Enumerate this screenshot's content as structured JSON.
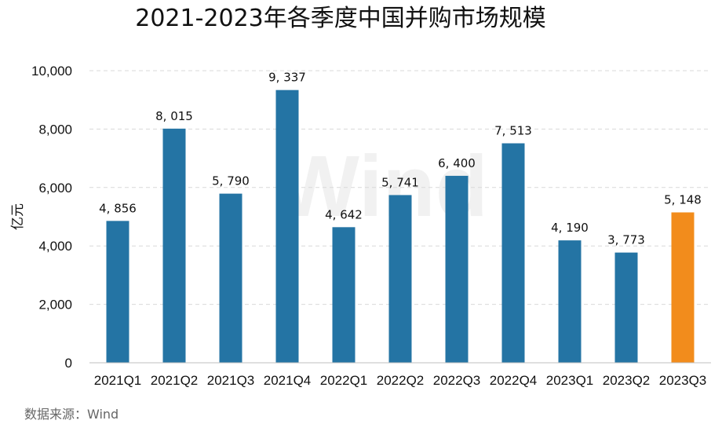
{
  "chart_data": {
    "type": "bar",
    "title": "2021-2023年各季度中国并购市场规模",
    "ylabel": "亿元",
    "xlabel": "",
    "categories": [
      "2021Q1",
      "2021Q2",
      "2021Q3",
      "2021Q4",
      "2022Q1",
      "2022Q2",
      "2022Q3",
      "2022Q4",
      "2023Q1",
      "2023Q2",
      "2023Q3"
    ],
    "values": [
      4856,
      8015,
      5790,
      9337,
      4642,
      5741,
      6400,
      7513,
      4190,
      3773,
      5148
    ],
    "data_labels": [
      "4, 856",
      "8, 015",
      "5, 790",
      "9, 337",
      "4, 642",
      "5, 741",
      "6, 400",
      "7, 513",
      "4, 190",
      "3, 773",
      "5, 148"
    ],
    "ylim": [
      0,
      10000
    ],
    "yticks": [
      0,
      2000,
      4000,
      6000,
      8000,
      10000
    ],
    "ytick_labels": [
      "0",
      "2,000",
      "4,000",
      "6,000",
      "8,000",
      "10,000"
    ],
    "grid": true,
    "colors": {
      "default": "#2474a4",
      "highlight": "#f28c1c",
      "grid": "#d9d9d9"
    },
    "highlight_index": 10
  },
  "source": "数据来源：Wind",
  "watermark": "Wind"
}
